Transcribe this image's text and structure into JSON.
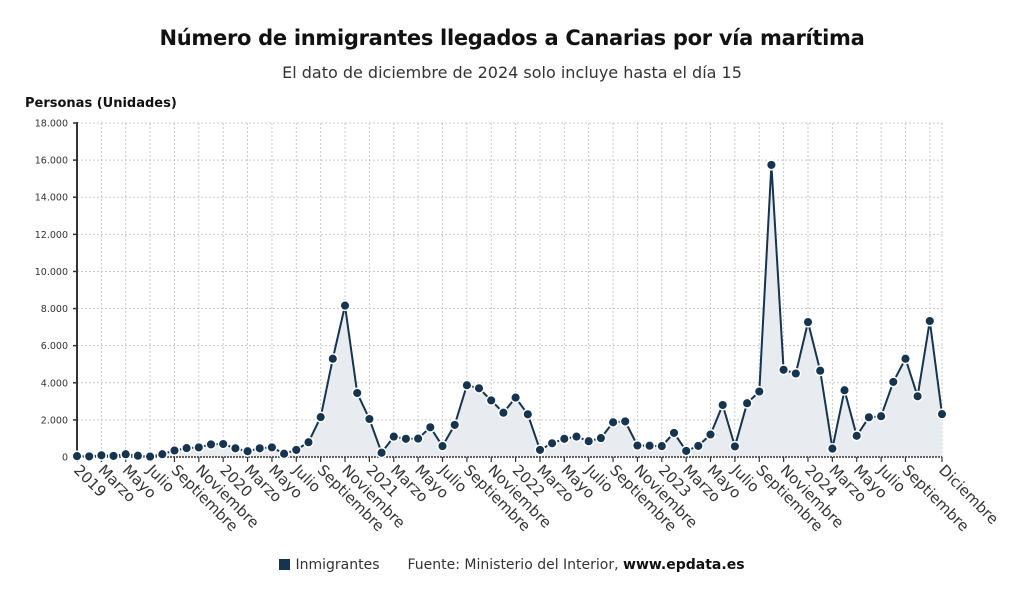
{
  "chart_data": {
    "type": "line",
    "title": "Número de inmigrantes llegados a Canarias por vía marítima",
    "subtitle": "El dato de diciembre de 2024 solo incluye hasta el día 15",
    "ylabel": "Personas (Unidades)",
    "xlabel": "",
    "ylim": [
      0,
      18000
    ],
    "yticks": [
      0,
      2000,
      4000,
      6000,
      8000,
      10000,
      12000,
      14000,
      16000,
      18000
    ],
    "ytick_labels": [
      "0",
      "2.000",
      "4.000",
      "6.000",
      "8.000",
      "10.000",
      "12.000",
      "14.000",
      "16.000",
      "18.000"
    ],
    "grid": true,
    "area_fill": true,
    "x_period": "monthly, January 2019 – December 2024",
    "x_tick_labels": [
      {
        "index": 0,
        "label": "2019"
      },
      {
        "index": 2,
        "label": "Marzo"
      },
      {
        "index": 4,
        "label": "Mayo"
      },
      {
        "index": 6,
        "label": "Julio"
      },
      {
        "index": 8,
        "label": "Septiembre"
      },
      {
        "index": 10,
        "label": "Noviembre"
      },
      {
        "index": 12,
        "label": "2020"
      },
      {
        "index": 14,
        "label": "Marzo"
      },
      {
        "index": 16,
        "label": "Mayo"
      },
      {
        "index": 18,
        "label": "Julio"
      },
      {
        "index": 20,
        "label": "Septiembre"
      },
      {
        "index": 22,
        "label": "Noviembre"
      },
      {
        "index": 24,
        "label": "2021"
      },
      {
        "index": 26,
        "label": "Marzo"
      },
      {
        "index": 28,
        "label": "Mayo"
      },
      {
        "index": 30,
        "label": "Julio"
      },
      {
        "index": 32,
        "label": "Septiembre"
      },
      {
        "index": 34,
        "label": "Noviembre"
      },
      {
        "index": 36,
        "label": "2022"
      },
      {
        "index": 38,
        "label": "Marzo"
      },
      {
        "index": 40,
        "label": "Mayo"
      },
      {
        "index": 42,
        "label": "Julio"
      },
      {
        "index": 44,
        "label": "Septiembre"
      },
      {
        "index": 46,
        "label": "Noviembre"
      },
      {
        "index": 48,
        "label": "2023"
      },
      {
        "index": 50,
        "label": "Marzo"
      },
      {
        "index": 52,
        "label": "Mayo"
      },
      {
        "index": 54,
        "label": "Julio"
      },
      {
        "index": 56,
        "label": "Septiembre"
      },
      {
        "index": 58,
        "label": "Noviembre"
      },
      {
        "index": 60,
        "label": "2024"
      },
      {
        "index": 62,
        "label": "Marzo"
      },
      {
        "index": 64,
        "label": "Mayo"
      },
      {
        "index": 66,
        "label": "Julio"
      },
      {
        "index": 68,
        "label": "Septiembre"
      },
      {
        "index": 71,
        "label": "Diciembre"
      }
    ],
    "series": [
      {
        "name": "Inmigrantes",
        "color": "#15344f",
        "values": [
          50,
          30,
          90,
          60,
          150,
          70,
          20,
          150,
          350,
          480,
          520,
          680,
          700,
          470,
          310,
          470,
          520,
          180,
          380,
          800,
          2150,
          5300,
          8160,
          3450,
          2050,
          230,
          1100,
          980,
          990,
          1600,
          590,
          1730,
          3870,
          3700,
          3050,
          2390,
          3200,
          2300,
          380,
          740,
          980,
          1100,
          850,
          1020,
          1870,
          1920,
          620,
          610,
          590,
          1300,
          330,
          600,
          1210,
          2800,
          570,
          2900,
          3530,
          15740,
          4700,
          4500,
          7270,
          4650,
          450,
          3600,
          1140,
          2140,
          2200,
          4050,
          5300,
          3270,
          7330,
          2310
        ]
      }
    ],
    "legend": {
      "placement": "bottom-center",
      "entries": [
        "Inmigrantes"
      ]
    },
    "source_label": "Fuente: Ministerio del Interior, ",
    "source_site": "www.epdata.es"
  },
  "colors": {
    "series": "#15344f",
    "area": "#e8ebef",
    "grid": "#c8c8c8",
    "axis": "#333333"
  }
}
